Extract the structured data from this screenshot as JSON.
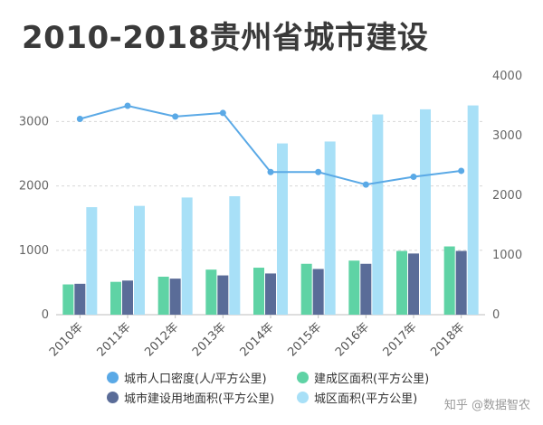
{
  "chart_data": {
    "title": "2010-2018贵州省城市建设",
    "type": "bar+line",
    "categories": [
      "2010年",
      "2011年",
      "2012年",
      "2013年",
      "2014年",
      "2015年",
      "2016年",
      "2017年",
      "2018年"
    ],
    "left_axis": {
      "ylim": [
        0,
        3500
      ],
      "ticks": [
        "0",
        "1000",
        "2000",
        "3000"
      ]
    },
    "right_axis": {
      "ylim": [
        0,
        4000
      ],
      "ticks": [
        "0",
        "1000",
        "2000",
        "3000",
        "4000"
      ]
    },
    "grid": "horizontal dashed",
    "series": [
      {
        "name": "城市人口密度(人/平方公里)",
        "type": "line",
        "axis": "right",
        "color": "#5aa9e6",
        "values": [
          3280,
          3500,
          3320,
          3380,
          2390,
          2390,
          2180,
          2310,
          2410
        ]
      },
      {
        "name": "建成区面积(平方公里)",
        "type": "bar",
        "axis": "left",
        "color": "#5fd3a5",
        "values": [
          470,
          510,
          590,
          700,
          730,
          790,
          840,
          990,
          1060
        ]
      },
      {
        "name": "城市建设用地面积(平方公里)",
        "type": "bar",
        "axis": "left",
        "color": "#5a6c98",
        "values": [
          480,
          530,
          560,
          610,
          640,
          710,
          790,
          950,
          990
        ]
      },
      {
        "name": "城区面积(平方公里)",
        "type": "bar",
        "axis": "left",
        "color": "#a8e0f7",
        "values": [
          1670,
          1690,
          1820,
          1840,
          2660,
          2690,
          3110,
          3190,
          3250
        ]
      }
    ],
    "legend_position": "bottom"
  },
  "legend": [
    {
      "label": "城市人口密度(人/平方公里)",
      "color": "#5aa9e6"
    },
    {
      "label": "建成区面积(平方公里)",
      "color": "#5fd3a5"
    },
    {
      "label": "城市建设用地面积(平方公里)",
      "color": "#5a6c98"
    },
    {
      "label": "城区面积(平方公里)",
      "color": "#a8e0f7"
    }
  ],
  "watermark": "知乎 @数据智农"
}
